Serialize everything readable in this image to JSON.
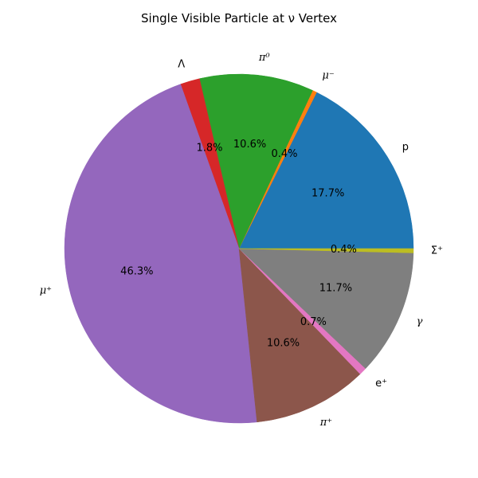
{
  "chart_data": {
    "type": "pie",
    "title": "Single Visible Particle at ν Vertex",
    "start_angle_deg": 0,
    "direction": "counterclockwise",
    "slices": [
      {
        "label": "p",
        "math": false,
        "value": 17.7,
        "pct_label": "17.7%",
        "color": "#1f77b4"
      },
      {
        "label": "μ⁻",
        "math": true,
        "value": 0.4,
        "pct_label": "0.4%",
        "color": "#ff7f0e"
      },
      {
        "label": "π⁰",
        "math": true,
        "value": 10.6,
        "pct_label": "10.6%",
        "color": "#2ca02c"
      },
      {
        "label": "Λ",
        "math": false,
        "value": 1.8,
        "pct_label": "1.8%",
        "color": "#d62728"
      },
      {
        "label": "μ⁺",
        "math": true,
        "value": 46.3,
        "pct_label": "46.3%",
        "color": "#9467bd"
      },
      {
        "label": "π⁺",
        "math": true,
        "value": 10.6,
        "pct_label": "10.6%",
        "color": "#8c564b"
      },
      {
        "label": "e⁺",
        "math": false,
        "value": 0.7,
        "pct_label": "0.7%",
        "color": "#e377c2"
      },
      {
        "label": "γ",
        "math": true,
        "value": 11.7,
        "pct_label": "11.7%",
        "color": "#7f7f7f"
      },
      {
        "label": "Σ⁺",
        "math": false,
        "value": 0.4,
        "pct_label": "0.4%",
        "color": "#bcbd22"
      }
    ]
  }
}
